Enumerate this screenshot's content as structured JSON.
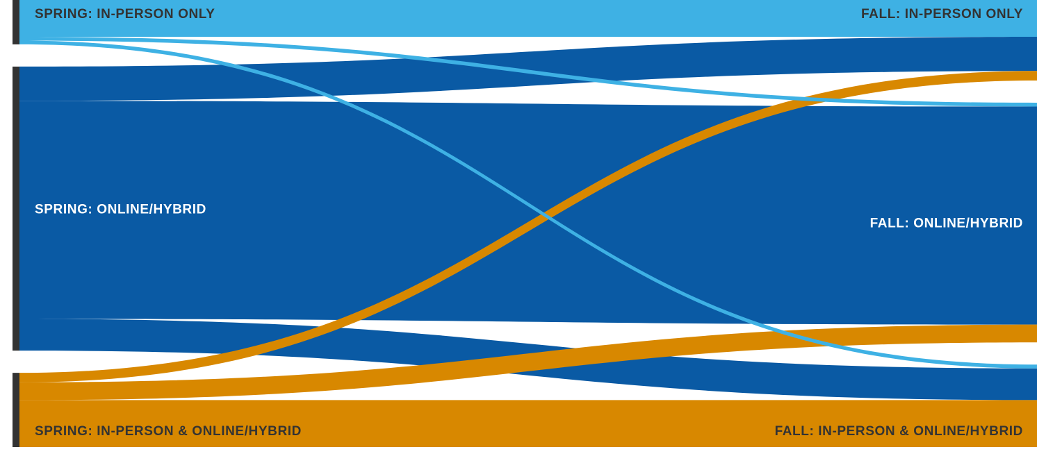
{
  "colors": {
    "in_person": "#3eb1e4",
    "online_hybrid": "#0a5aa4",
    "both": "#d88800",
    "axis_bar": "#333333",
    "label_dark": "#333333",
    "label_light": "#ffffff"
  },
  "chart_data": {
    "type": "sankey",
    "nodes": [
      {
        "id": "spring_in_person",
        "label": "SPRING: IN-PERSON ONLY",
        "stage": "spring",
        "category": "in_person"
      },
      {
        "id": "spring_online",
        "label": "SPRING: ONLINE/HYBRID",
        "stage": "spring",
        "category": "online_hybrid"
      },
      {
        "id": "spring_both",
        "label": "SPRING: IN-PERSON & ONLINE/HYBRID",
        "stage": "spring",
        "category": "both"
      },
      {
        "id": "fall_in_person",
        "label": "FALL: IN-PERSON ONLY",
        "stage": "fall",
        "category": "in_person"
      },
      {
        "id": "fall_online",
        "label": "FALL: ONLINE/HYBRID",
        "stage": "fall",
        "category": "online_hybrid"
      },
      {
        "id": "fall_both",
        "label": "FALL: IN-PERSON & ONLINE/HYBRID",
        "stage": "fall",
        "category": "both"
      }
    ],
    "links": [
      {
        "source": "spring_in_person",
        "target": "fall_in_person",
        "value": 58
      },
      {
        "source": "spring_in_person",
        "target": "fall_online",
        "value": 6
      },
      {
        "source": "spring_in_person",
        "target": "fall_both",
        "value": 6
      },
      {
        "source": "spring_online",
        "target": "fall_in_person",
        "value": 54
      },
      {
        "source": "spring_online",
        "target": "fall_online",
        "value": 344
      },
      {
        "source": "spring_online",
        "target": "fall_both",
        "value": 50
      },
      {
        "source": "spring_both",
        "target": "fall_in_person",
        "value": 15
      },
      {
        "source": "spring_both",
        "target": "fall_online",
        "value": 28
      },
      {
        "source": "spring_both",
        "target": "fall_both",
        "value": 74
      }
    ]
  }
}
